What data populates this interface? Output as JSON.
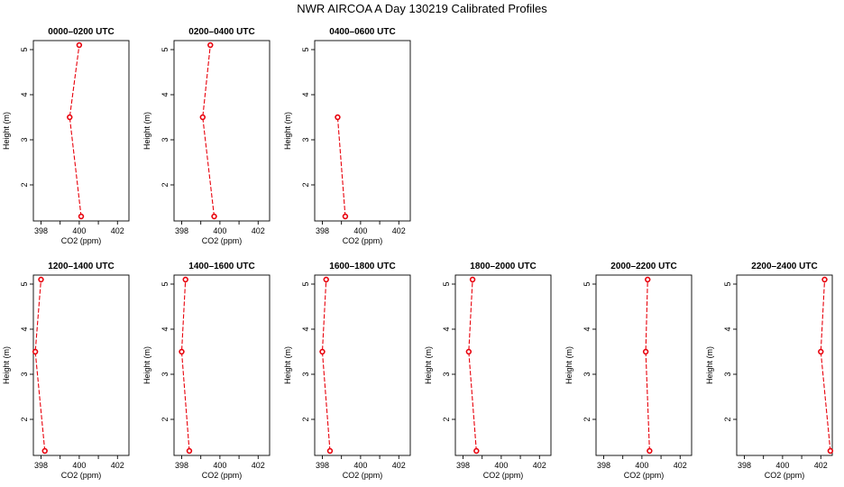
{
  "figure": {
    "title": "NWR AIRCOA A  Day 130219  Calibrated Profiles"
  },
  "chart_data": [
    {
      "type": "line",
      "title": "0000–0200 UTC",
      "xlabel": "CO2 (ppm)",
      "ylabel": "Height (m)",
      "xlim": [
        397.6,
        402.6
      ],
      "ylim": [
        1.2,
        5.2
      ],
      "xticks": [
        398,
        400,
        402
      ],
      "yticks": [
        2,
        3,
        4,
        5
      ],
      "grid": false,
      "series": [
        {
          "points": [
            [
              400.1,
              1.3
            ],
            [
              399.5,
              3.5
            ],
            [
              400.0,
              5.1
            ]
          ],
          "color": "#e8000b"
        }
      ]
    },
    {
      "type": "line",
      "title": "0200–0400 UTC",
      "xlabel": "CO2 (ppm)",
      "ylabel": "Height (m)",
      "xlim": [
        397.6,
        402.6
      ],
      "ylim": [
        1.2,
        5.2
      ],
      "xticks": [
        398,
        400,
        402
      ],
      "yticks": [
        2,
        3,
        4,
        5
      ],
      "grid": false,
      "series": [
        {
          "points": [
            [
              399.7,
              1.3
            ],
            [
              399.1,
              3.5
            ],
            [
              399.5,
              5.1
            ]
          ],
          "color": "#e8000b"
        }
      ]
    },
    {
      "type": "line",
      "title": "0400–0600 UTC",
      "xlabel": "CO2 (ppm)",
      "ylabel": "Height (m)",
      "xlim": [
        397.6,
        402.6
      ],
      "ylim": [
        1.2,
        5.2
      ],
      "xticks": [
        398,
        400,
        402
      ],
      "yticks": [
        2,
        3,
        4,
        5
      ],
      "grid": false,
      "series": [
        {
          "points": [
            [
              399.2,
              1.3
            ],
            [
              398.8,
              3.5
            ]
          ],
          "color": "#e8000b"
        }
      ]
    },
    {
      "type": "line",
      "title": "1200–1400 UTC",
      "xlabel": "CO2 (ppm)",
      "ylabel": "Height (m)",
      "xlim": [
        397.6,
        402.6
      ],
      "ylim": [
        1.2,
        5.2
      ],
      "xticks": [
        398,
        400,
        402
      ],
      "yticks": [
        2,
        3,
        4,
        5
      ],
      "grid": false,
      "series": [
        {
          "points": [
            [
              398.2,
              1.3
            ],
            [
              397.7,
              3.5
            ],
            [
              398.0,
              5.1
            ]
          ],
          "color": "#e8000b"
        }
      ]
    },
    {
      "type": "line",
      "title": "1400–1600 UTC",
      "xlabel": "CO2 (ppm)",
      "ylabel": "Height (m)",
      "xlim": [
        397.6,
        402.6
      ],
      "ylim": [
        1.2,
        5.2
      ],
      "xticks": [
        398,
        400,
        402
      ],
      "yticks": [
        2,
        3,
        4,
        5
      ],
      "grid": false,
      "series": [
        {
          "points": [
            [
              398.4,
              1.3
            ],
            [
              398.0,
              3.5
            ],
            [
              398.2,
              5.1
            ]
          ],
          "color": "#e8000b"
        }
      ]
    },
    {
      "type": "line",
      "title": "1600–1800 UTC",
      "xlabel": "CO2 (ppm)",
      "ylabel": "Height (m)",
      "xlim": [
        397.6,
        402.6
      ],
      "ylim": [
        1.2,
        5.2
      ],
      "xticks": [
        398,
        400,
        402
      ],
      "yticks": [
        2,
        3,
        4,
        5
      ],
      "grid": false,
      "series": [
        {
          "points": [
            [
              398.4,
              1.3
            ],
            [
              398.0,
              3.5
            ],
            [
              398.2,
              5.1
            ]
          ],
          "color": "#e8000b"
        }
      ]
    },
    {
      "type": "line",
      "title": "1800–2000 UTC",
      "xlabel": "CO2 (ppm)",
      "ylabel": "Height (m)",
      "xlim": [
        397.6,
        402.6
      ],
      "ylim": [
        1.2,
        5.2
      ],
      "xticks": [
        398,
        400,
        402
      ],
      "yticks": [
        2,
        3,
        4,
        5
      ],
      "grid": false,
      "series": [
        {
          "points": [
            [
              398.7,
              1.3
            ],
            [
              398.3,
              3.5
            ],
            [
              398.5,
              5.1
            ]
          ],
          "color": "#e8000b"
        }
      ]
    },
    {
      "type": "line",
      "title": "2000–2200 UTC",
      "xlabel": "CO2 (ppm)",
      "ylabel": "Height (m)",
      "xlim": [
        397.6,
        402.6
      ],
      "ylim": [
        1.2,
        5.2
      ],
      "xticks": [
        398,
        400,
        402
      ],
      "yticks": [
        2,
        3,
        4,
        5
      ],
      "grid": false,
      "series": [
        {
          "points": [
            [
              400.4,
              1.3
            ],
            [
              400.2,
              3.5
            ],
            [
              400.3,
              5.1
            ]
          ],
          "color": "#e8000b"
        }
      ]
    },
    {
      "type": "line",
      "title": "2200–2400 UTC",
      "xlabel": "CO2 (ppm)",
      "ylabel": "Height (m)",
      "xlim": [
        397.6,
        402.6
      ],
      "ylim": [
        1.2,
        5.2
      ],
      "xticks": [
        398,
        400,
        402
      ],
      "yticks": [
        2,
        3,
        4,
        5
      ],
      "grid": false,
      "series": [
        {
          "points": [
            [
              402.5,
              1.3
            ],
            [
              402.0,
              3.5
            ],
            [
              402.2,
              5.1
            ]
          ],
          "color": "#e8000b"
        }
      ]
    }
  ]
}
